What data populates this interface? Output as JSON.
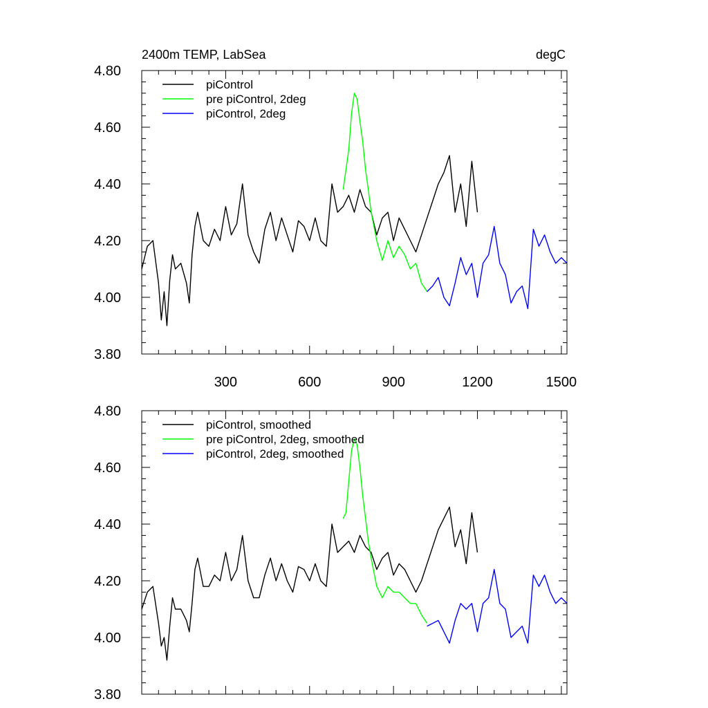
{
  "chart_data": [
    {
      "type": "line",
      "title": "2400m TEMP, LabSea",
      "units": "degC",
      "xlabel": "",
      "ylabel": "",
      "xlim": [
        0,
        1520
      ],
      "ylim": [
        3.8,
        4.8
      ],
      "x_tick_values": [
        300,
        600,
        900,
        1200,
        1500
      ],
      "x_tick_labels": [
        "300",
        "600",
        "900",
        "1200",
        "1500"
      ],
      "y_tick_values": [
        3.8,
        4.0,
        4.2,
        4.4,
        4.6,
        4.8
      ],
      "y_tick_labels": [
        "3.80",
        "4.00",
        "4.20",
        "4.40",
        "4.60",
        "4.80"
      ],
      "grid": false,
      "legend_position": "top-left",
      "series": [
        {
          "name": "piControl",
          "color": "#000000",
          "x": [
            0,
            20,
            40,
            60,
            70,
            80,
            90,
            100,
            110,
            120,
            140,
            160,
            170,
            180,
            190,
            200,
            220,
            240,
            260,
            280,
            300,
            320,
            340,
            360,
            380,
            400,
            420,
            440,
            460,
            480,
            500,
            520,
            540,
            560,
            580,
            600,
            620,
            640,
            660,
            680,
            700,
            720,
            740,
            760,
            780,
            800,
            820,
            840,
            860,
            880,
            900,
            920,
            940,
            960,
            980,
            1000,
            1020,
            1040,
            1060,
            1080,
            1100,
            1120,
            1140,
            1160,
            1180,
            1200
          ],
          "y": [
            4.1,
            4.18,
            4.2,
            4.05,
            3.92,
            4.02,
            3.9,
            4.06,
            4.15,
            4.1,
            4.12,
            4.05,
            3.98,
            4.15,
            4.25,
            4.3,
            4.2,
            4.18,
            4.24,
            4.2,
            4.32,
            4.22,
            4.26,
            4.4,
            4.22,
            4.16,
            4.12,
            4.24,
            4.3,
            4.2,
            4.28,
            4.22,
            4.16,
            4.27,
            4.25,
            4.2,
            4.28,
            4.2,
            4.18,
            4.4,
            4.3,
            4.32,
            4.36,
            4.3,
            4.38,
            4.32,
            4.3,
            4.22,
            4.28,
            4.3,
            4.2,
            4.28,
            4.24,
            4.2,
            4.16,
            4.22,
            4.28,
            4.34,
            4.4,
            4.44,
            4.5,
            4.3,
            4.4,
            4.25,
            4.48,
            4.3
          ]
        },
        {
          "name": "pre piControl, 2deg",
          "color": "#00ff00",
          "x": [
            720,
            730,
            740,
            750,
            760,
            770,
            780,
            790,
            800,
            810,
            820,
            840,
            860,
            880,
            900,
            920,
            940,
            960,
            980,
            1000,
            1020
          ],
          "y": [
            4.38,
            4.45,
            4.52,
            4.65,
            4.72,
            4.7,
            4.62,
            4.55,
            4.45,
            4.38,
            4.3,
            4.2,
            4.13,
            4.2,
            4.14,
            4.18,
            4.15,
            4.1,
            4.12,
            4.05,
            4.02
          ]
        },
        {
          "name": "piControl, 2deg",
          "color": "#0000ff",
          "x": [
            1020,
            1040,
            1060,
            1080,
            1100,
            1120,
            1140,
            1160,
            1180,
            1200,
            1220,
            1240,
            1260,
            1280,
            1300,
            1320,
            1340,
            1360,
            1380,
            1400,
            1420,
            1440,
            1460,
            1480,
            1500,
            1520
          ],
          "y": [
            4.02,
            4.04,
            4.07,
            4.0,
            3.97,
            4.05,
            4.14,
            4.08,
            4.12,
            4.0,
            4.12,
            4.15,
            4.25,
            4.12,
            4.08,
            3.98,
            4.02,
            4.04,
            3.96,
            4.24,
            4.18,
            4.22,
            4.16,
            4.12,
            4.14,
            4.12
          ]
        }
      ]
    },
    {
      "type": "line",
      "title": "",
      "xlabel": "",
      "ylabel": "",
      "xlim": [
        0,
        1520
      ],
      "ylim": [
        3.8,
        4.8
      ],
      "x_tick_values": [
        300,
        600,
        900,
        1200,
        1500
      ],
      "y_tick_values": [
        3.8,
        4.0,
        4.2,
        4.4,
        4.6,
        4.8
      ],
      "y_tick_labels": [
        "3.80",
        "4.00",
        "4.20",
        "4.40",
        "4.60",
        "4.80"
      ],
      "grid": false,
      "legend_position": "top-left",
      "series": [
        {
          "name": "piControl, smoothed",
          "color": "#000000",
          "x": [
            0,
            20,
            40,
            60,
            70,
            80,
            90,
            100,
            110,
            120,
            140,
            160,
            170,
            180,
            190,
            200,
            220,
            240,
            260,
            280,
            300,
            320,
            340,
            360,
            380,
            400,
            420,
            440,
            460,
            480,
            500,
            520,
            540,
            560,
            580,
            600,
            620,
            640,
            660,
            680,
            700,
            720,
            740,
            760,
            780,
            800,
            820,
            840,
            860,
            880,
            900,
            920,
            940,
            960,
            980,
            1000,
            1020,
            1040,
            1060,
            1080,
            1100,
            1120,
            1140,
            1160,
            1180,
            1200
          ],
          "y": [
            4.1,
            4.16,
            4.18,
            4.05,
            3.97,
            4.0,
            3.92,
            4.04,
            4.14,
            4.1,
            4.1,
            4.06,
            4.02,
            4.12,
            4.24,
            4.28,
            4.18,
            4.18,
            4.22,
            4.2,
            4.3,
            4.2,
            4.24,
            4.36,
            4.2,
            4.14,
            4.14,
            4.22,
            4.28,
            4.2,
            4.26,
            4.2,
            4.16,
            4.25,
            4.24,
            4.2,
            4.26,
            4.2,
            4.18,
            4.4,
            4.3,
            4.32,
            4.34,
            4.3,
            4.36,
            4.32,
            4.3,
            4.24,
            4.28,
            4.3,
            4.22,
            4.26,
            4.24,
            4.2,
            4.16,
            4.2,
            4.26,
            4.32,
            4.38,
            4.42,
            4.46,
            4.32,
            4.38,
            4.26,
            4.44,
            4.3
          ]
        },
        {
          "name": "pre piControl, 2deg, smoothed",
          "color": "#00ff00",
          "x": [
            720,
            730,
            740,
            750,
            760,
            770,
            780,
            790,
            800,
            810,
            820,
            840,
            860,
            880,
            900,
            920,
            940,
            960,
            980,
            1000,
            1020
          ],
          "y": [
            4.42,
            4.44,
            4.55,
            4.66,
            4.7,
            4.68,
            4.6,
            4.5,
            4.42,
            4.34,
            4.28,
            4.18,
            4.14,
            4.18,
            4.16,
            4.16,
            4.14,
            4.12,
            4.12,
            4.08,
            4.05
          ]
        },
        {
          "name": "piControl, 2deg, smoothed",
          "color": "#0000ff",
          "x": [
            1020,
            1040,
            1060,
            1080,
            1100,
            1120,
            1140,
            1160,
            1180,
            1200,
            1220,
            1240,
            1260,
            1280,
            1300,
            1320,
            1340,
            1360,
            1380,
            1400,
            1420,
            1440,
            1460,
            1480,
            1500,
            1520
          ],
          "y": [
            4.04,
            4.05,
            4.06,
            4.02,
            3.98,
            4.06,
            4.12,
            4.1,
            4.12,
            4.02,
            4.12,
            4.14,
            4.24,
            4.12,
            4.1,
            4.0,
            4.02,
            4.04,
            3.98,
            4.22,
            4.18,
            4.22,
            4.16,
            4.12,
            4.14,
            4.12
          ]
        }
      ]
    }
  ]
}
